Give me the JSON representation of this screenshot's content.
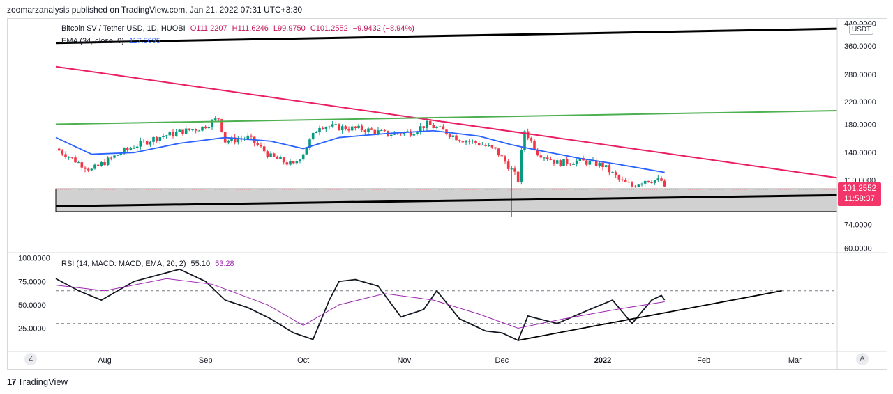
{
  "header": {
    "publisher": "zoomarzanalysis published on TradingView.com, Jan 21, 2022 07:31 UTC+3:30"
  },
  "legend": {
    "symbol": "Bitcoin SV / Tether USD, 1D, HUOBI",
    "open": "O111.2207",
    "high": "H111.6246",
    "low": "L99.9750",
    "close": "C101.2552",
    "change": "−9.9432 (−8.94%)",
    "ema_label": "EMA (34, close, 0)",
    "ema_value": "117.5095",
    "rsi_label": "RSI (14, MACD: MACD, EMA, 20, 2)",
    "rsi_value": "55.10",
    "rsi_ma_value": "53.28"
  },
  "price_axis": {
    "currency": "USDT",
    "labels": [
      "440.0000",
      "360.0000",
      "280.0000",
      "220.0000",
      "180.0000",
      "140.0000",
      "110.0000",
      "74.0000",
      "60.0000"
    ],
    "last_price": "101.2552",
    "countdown": "11:58:37"
  },
  "rsi_axis": {
    "labels": [
      "100.0000",
      "75.0000",
      "50.0000",
      "25.0000"
    ]
  },
  "time_axis": {
    "labels": [
      "Aug",
      "Sep",
      "Oct",
      "Nov",
      "Dec",
      "2022",
      "Feb",
      "Mar"
    ]
  },
  "controls": {
    "left_button": "Z",
    "right_button": "A"
  },
  "footer": {
    "brand": "TradingView",
    "brand_mark": "17"
  },
  "colors": {
    "up": "#089981",
    "down": "#f23645",
    "ema": "#2962ff",
    "rsi": "#131722",
    "rsi_ma": "#9c27b0",
    "pink_trend": "#e91e63",
    "green_trend": "#4caf50",
    "zone": "#d1d1d1"
  },
  "chart_data": [
    {
      "type": "candlestick",
      "title": "Bitcoin SV / Tether USD, 1D, HUOBI",
      "y_scale": "log",
      "ylim": [
        58,
        450
      ],
      "x_range": [
        "2021-07-17",
        "2022-03-14"
      ],
      "close_path": [
        [
          "2021-07-17",
          145
        ],
        [
          "2021-07-24",
          128
        ],
        [
          "2021-07-28",
          120
        ],
        [
          "2021-08-03",
          133
        ],
        [
          "2021-08-10",
          148
        ],
        [
          "2021-08-17",
          160
        ],
        [
          "2021-08-24",
          168
        ],
        [
          "2021-08-31",
          175
        ],
        [
          "2021-09-05",
          190
        ],
        [
          "2021-09-07",
          155
        ],
        [
          "2021-09-14",
          160
        ],
        [
          "2021-09-21",
          135
        ],
        [
          "2021-09-28",
          125
        ],
        [
          "2021-10-01",
          140
        ],
        [
          "2021-10-06",
          178
        ],
        [
          "2021-10-12",
          175
        ],
        [
          "2021-10-20",
          172
        ],
        [
          "2021-10-27",
          165
        ],
        [
          "2021-11-03",
          168
        ],
        [
          "2021-11-08",
          180
        ],
        [
          "2021-11-12",
          172
        ],
        [
          "2021-11-18",
          158
        ],
        [
          "2021-11-24",
          152
        ],
        [
          "2021-11-29",
          143
        ],
        [
          "2021-12-04",
          120
        ],
        [
          "2021-12-06",
          110
        ],
        [
          "2021-12-08",
          170
        ],
        [
          "2021-12-12",
          140
        ],
        [
          "2021-12-18",
          128
        ],
        [
          "2021-12-25",
          130
        ],
        [
          "2022-01-01",
          125
        ],
        [
          "2022-01-06",
          110
        ],
        [
          "2022-01-10",
          104
        ],
        [
          "2022-01-14",
          110
        ],
        [
          "2022-01-19",
          109
        ],
        [
          "2022-01-20",
          101.26
        ]
      ],
      "ema_path": [
        [
          "2021-07-17",
          160
        ],
        [
          "2021-07-28",
          138
        ],
        [
          "2021-08-10",
          140
        ],
        [
          "2021-08-24",
          152
        ],
        [
          "2021-09-07",
          160
        ],
        [
          "2021-09-21",
          155
        ],
        [
          "2021-10-01",
          145
        ],
        [
          "2021-10-12",
          160
        ],
        [
          "2021-10-27",
          166
        ],
        [
          "2021-11-10",
          170
        ],
        [
          "2021-11-24",
          162
        ],
        [
          "2021-12-04",
          150
        ],
        [
          "2021-12-12",
          143
        ],
        [
          "2021-12-25",
          133
        ],
        [
          "2022-01-06",
          126
        ],
        [
          "2022-01-20",
          117.51
        ]
      ],
      "wick_low": {
        "date": "2021-12-04",
        "value": 79
      },
      "trendlines": [
        {
          "name": "upper",
          "color": "#000000",
          "from": [
            "2021-07-17",
            370
          ],
          "to": [
            "2022-03-14",
            420
          ]
        },
        {
          "name": "pink",
          "color": "#e91e63",
          "from": [
            "2021-07-17",
            300
          ],
          "to": [
            "2022-03-14",
            112
          ]
        },
        {
          "name": "green",
          "color": "#4caf50",
          "from": [
            "2021-07-17",
            180
          ],
          "to": [
            "2022-03-14",
            203
          ]
        },
        {
          "name": "lower",
          "color": "#000000",
          "from": [
            "2021-07-17",
            87
          ],
          "to": [
            "2022-03-14",
            96
          ]
        }
      ],
      "zone": {
        "top": 101.5,
        "bottom": 83
      },
      "last_price": 101.2552
    },
    {
      "type": "line",
      "title": "RSI (14, MACD: MACD, EMA, 20, 2)",
      "ylim": [
        0,
        105
      ],
      "levels": [
        65,
        30
      ],
      "series": [
        {
          "name": "RSI",
          "color": "#131722",
          "values": [
            [
              "2021-07-17",
              78
            ],
            [
              "2021-07-24",
              65
            ],
            [
              "2021-07-31",
              55
            ],
            [
              "2021-08-10",
              75
            ],
            [
              "2021-08-24",
              88
            ],
            [
              "2021-09-01",
              75
            ],
            [
              "2021-09-07",
              55
            ],
            [
              "2021-09-14",
              47
            ],
            [
              "2021-09-21",
              35
            ],
            [
              "2021-09-28",
              20
            ],
            [
              "2021-10-04",
              13
            ],
            [
              "2021-10-09",
              55
            ],
            [
              "2021-10-12",
              75
            ],
            [
              "2021-10-17",
              77
            ],
            [
              "2021-10-24",
              70
            ],
            [
              "2021-10-31",
              37
            ],
            [
              "2021-11-07",
              45
            ],
            [
              "2021-11-11",
              65
            ],
            [
              "2021-11-18",
              35
            ],
            [
              "2021-11-26",
              22
            ],
            [
              "2021-12-01",
              20
            ],
            [
              "2021-12-06",
              12
            ],
            [
              "2021-12-09",
              38
            ],
            [
              "2021-12-18",
              30
            ],
            [
              "2021-12-28",
              45
            ],
            [
              "2022-01-04",
              55
            ],
            [
              "2022-01-10",
              30
            ],
            [
              "2022-01-16",
              55
            ],
            [
              "2022-01-19",
              60
            ],
            [
              "2022-01-20",
              55.1
            ]
          ]
        },
        {
          "name": "MA",
          "color": "#9c27b0",
          "values": [
            [
              "2021-07-17",
              71
            ],
            [
              "2021-08-01",
              65
            ],
            [
              "2021-08-20",
              78
            ],
            [
              "2021-09-03",
              72
            ],
            [
              "2021-09-20",
              50
            ],
            [
              "2021-10-01",
              28
            ],
            [
              "2021-10-12",
              50
            ],
            [
              "2021-10-26",
              62
            ],
            [
              "2021-11-10",
              55
            ],
            [
              "2021-11-24",
              40
            ],
            [
              "2021-12-06",
              25
            ],
            [
              "2021-12-20",
              35
            ],
            [
              "2022-01-05",
              45
            ],
            [
              "2022-01-20",
              53.28
            ]
          ]
        }
      ],
      "trendline": {
        "from": [
          "2021-12-06",
          12
        ],
        "to": [
          "2022-02-25",
          65
        ]
      }
    }
  ]
}
